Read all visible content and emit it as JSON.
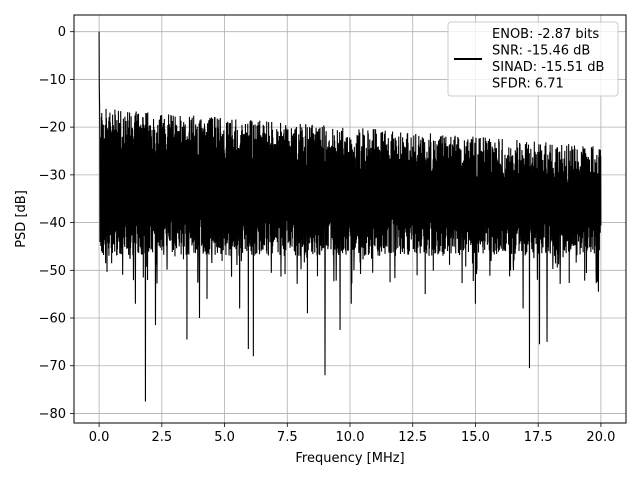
{
  "chart_data": {
    "type": "line",
    "xlabel": "Frequency [MHz]",
    "ylabel": "PSD [dB]",
    "xlim": [
      -1,
      21
    ],
    "ylim": [
      -82,
      3.5
    ],
    "x_ticks": [
      0.0,
      2.5,
      5.0,
      7.5,
      10.0,
      12.5,
      15.0,
      17.5,
      20.0
    ],
    "x_tick_labels": [
      "0.0",
      "2.5",
      "5.0",
      "7.5",
      "10.0",
      "12.5",
      "15.0",
      "17.5",
      "20.0"
    ],
    "y_ticks": [
      0,
      -10,
      -20,
      -30,
      -40,
      -50,
      -60,
      -70,
      -80
    ],
    "y_tick_labels": [
      "0",
      "−10",
      "−20",
      "−30",
      "−40",
      "−50",
      "−60",
      "−70",
      "−80"
    ],
    "grid": true,
    "legend_position": "top-right",
    "line_color": "#000000",
    "series": [
      {
        "legend_lines": [
          "ENOB: -2.87 bits",
          "SNR: -15.46 dB",
          "SINAD: -15.51 dB",
          "SFDR: 6.71"
        ],
        "x_range": [
          0,
          20
        ],
        "upper_envelope_at_0": -15,
        "upper_envelope_at_20": -23,
        "typical_lower": -45,
        "peak": {
          "x": 0.0,
          "y": 0.0
        },
        "deep_nulls": [
          {
            "x": 0.15,
            "y": -45.5
          },
          {
            "x": 1.45,
            "y": -57
          },
          {
            "x": 1.85,
            "y": -77.5
          },
          {
            "x": 2.25,
            "y": -61.5
          },
          {
            "x": 3.5,
            "y": -64.5
          },
          {
            "x": 4.0,
            "y": -60
          },
          {
            "x": 4.3,
            "y": -56
          },
          {
            "x": 5.6,
            "y": -58
          },
          {
            "x": 5.95,
            "y": -66.5
          },
          {
            "x": 6.15,
            "y": -68
          },
          {
            "x": 8.3,
            "y": -59
          },
          {
            "x": 9.0,
            "y": -72
          },
          {
            "x": 9.6,
            "y": -62.5
          },
          {
            "x": 10.05,
            "y": -57
          },
          {
            "x": 13.0,
            "y": -55
          },
          {
            "x": 15.0,
            "y": -57
          },
          {
            "x": 16.9,
            "y": -58
          },
          {
            "x": 17.15,
            "y": -70.5
          },
          {
            "x": 17.55,
            "y": -65.5
          },
          {
            "x": 17.85,
            "y": -65
          },
          {
            "x": 19.9,
            "y": -54.5
          }
        ]
      }
    ]
  }
}
